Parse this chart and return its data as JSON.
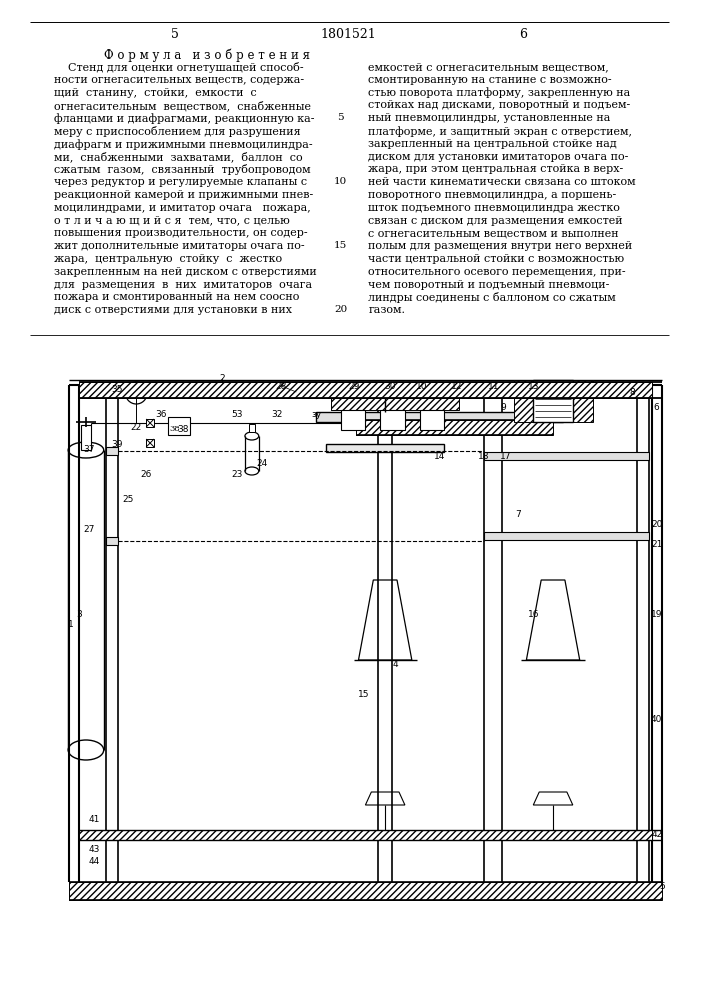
{
  "page_numbers_left": "5",
  "page_number_mid": "1801521",
  "page_numbers_right": "6",
  "title": "Ф о р м у л а   и з о б р е т е н и я",
  "left_lines": [
    "    Стенд для оценки огнетушащей способ-",
    "ности огнегасительных веществ, содержа-",
    "щий  станину,  стойки,  емкости  с",
    "огнегасительным  веществом,  снабженные",
    "фланцами и диафрагмами, реакционную ка-",
    "меру с приспособлением для разрушения",
    "диафрагм и прижимными пневмоцилиндра-",
    "ми,  снабженными  захватами,  баллон  со",
    "сжатым  газом,  связанный  трубопроводом",
    "через редуктор и регулируемые клапаны с",
    "реакционной камерой и прижимными пнев-",
    "моцилиндрами, и имитатор очага   пожара,",
    "о т л и ч а ю щ и й с я  тем, что, с целью",
    "повышения производительности, он содер-",
    "жит дополнительные имитаторы очага по-",
    "жара,  центральную  стойку  с  жестко",
    "закрепленным на ней диском с отверстиями",
    "для  размещения  в  них  имитаторов  очага",
    "пожара и смонтированный на нем соосно",
    "диск с отверстиями для установки в них"
  ],
  "right_lines": [
    "емкостей с огнегасительным веществом,",
    "смонтированную на станине с возможно-",
    "стью поворота платформу, закрепленную на",
    "стойках над дисками, поворотный и подъем-",
    "ный пневмоцилиндры, установленные на",
    "платформе, и защитный экран с отверстием,",
    "закрепленный на центральной стойке над",
    "диском для установки имитаторов очага по-",
    "жара, при этом центральная стойка в верх-",
    "ней части кинематически связана со штоком",
    "поворотного пневмоцилиндра, а поршень-",
    "шток подъемного пневмоцилиндра жестко",
    "связан с диском для размещения емкостей",
    "с огнегасительным веществом и выполнен",
    "полым для размещения внутри него верхней",
    "части центральной стойки с возможностью",
    "относительного осевого перемещения, при-",
    "чем поворотный и подъемный пневмоци-",
    "линдры соединены с баллоном со сжатым",
    "газом."
  ],
  "line_markers": {
    "4": "5",
    "9": "10",
    "14": "15",
    "19": "20"
  },
  "bg_color": "#ffffff"
}
